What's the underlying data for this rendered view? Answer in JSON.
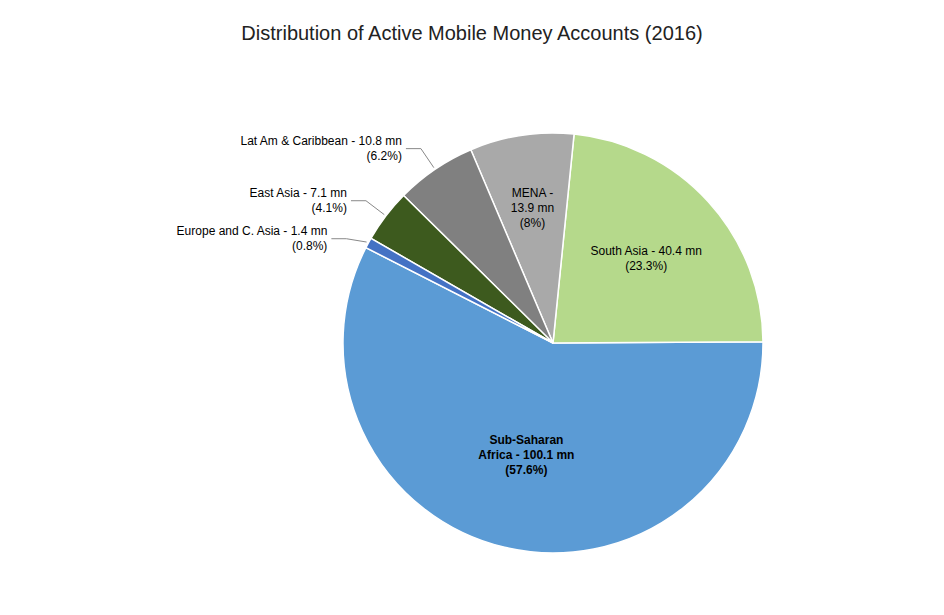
{
  "chart_data": {
    "type": "pie",
    "title": "Distribution of Active Mobile Money Accounts (2016)",
    "categories": [
      "Sub-Saharan\nAfrica - 100.1 mn\n(57.6%)",
      "South Asia - 40.4 mn\n(23.3%)",
      "MENA -\n13.9 mn\n(8%)",
      "Lat Am & Caribbean - 10.8 mn\n(6.2%)",
      "East Asia - 7.1 mn\n(4.1%)",
      "Europe and C. Asia - 1.4 mn\n(0.8%)"
    ],
    "values": [
      57.6,
      23.3,
      8,
      6.2,
      4.1,
      0.8
    ],
    "colors": [
      "#5B9BD5",
      "#B5D98B",
      "#A9A9A9",
      "#808080",
      "#3D5A1E",
      "#4472C4"
    ]
  }
}
